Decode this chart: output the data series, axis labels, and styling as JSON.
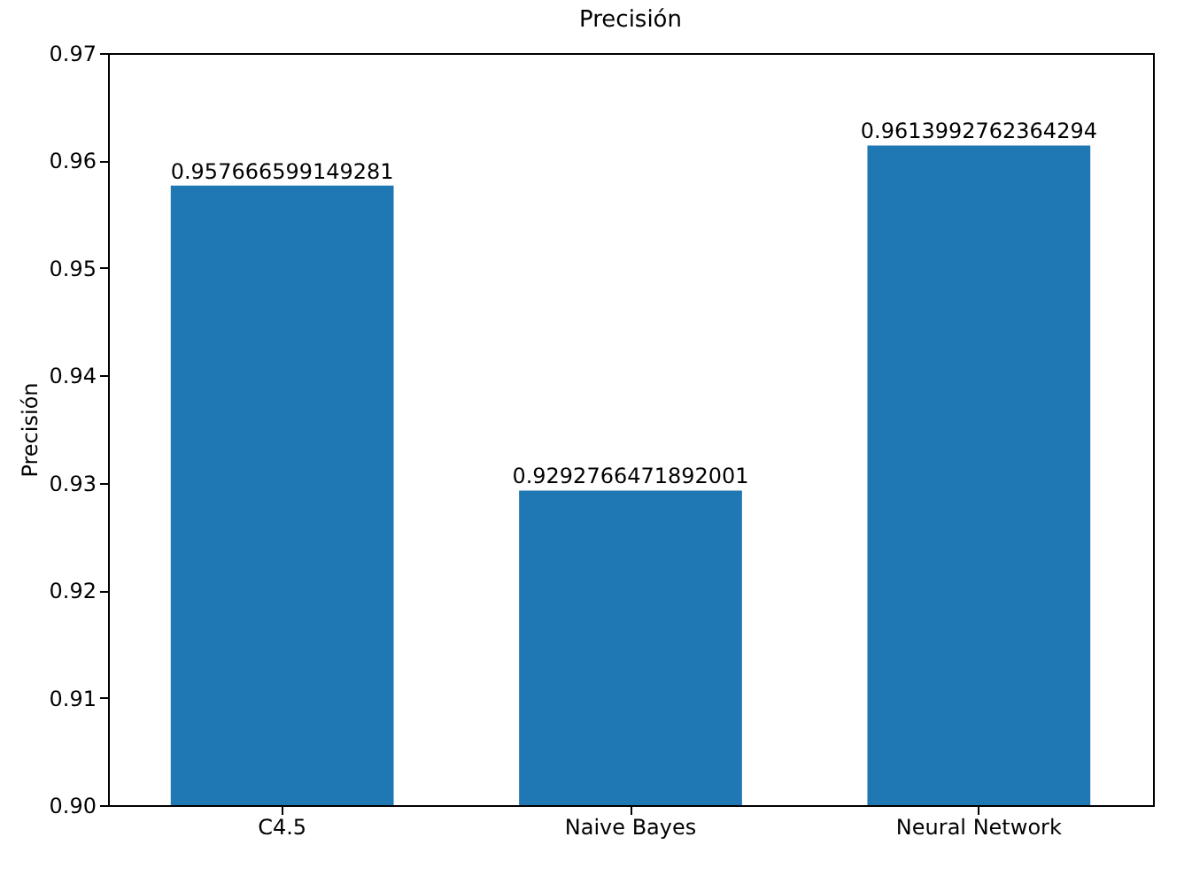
{
  "chart_data": {
    "type": "bar",
    "title": "Precisión",
    "ylabel": "Precisión",
    "categories": [
      "C4.5",
      "Naive Bayes",
      "Neural Network"
    ],
    "values": [
      0.957666599149281,
      0.9292766471892001,
      0.9613992762364294
    ],
    "color": "#1f77b4",
    "ylim": [
      0.9,
      0.97
    ],
    "yticks": [
      {
        "value": 0.9,
        "label": "0.90"
      },
      0.91,
      0.92,
      0.93,
      0.94,
      0.95,
      0.96,
      0.97
    ],
    "data_labels": true,
    "grid": false
  }
}
